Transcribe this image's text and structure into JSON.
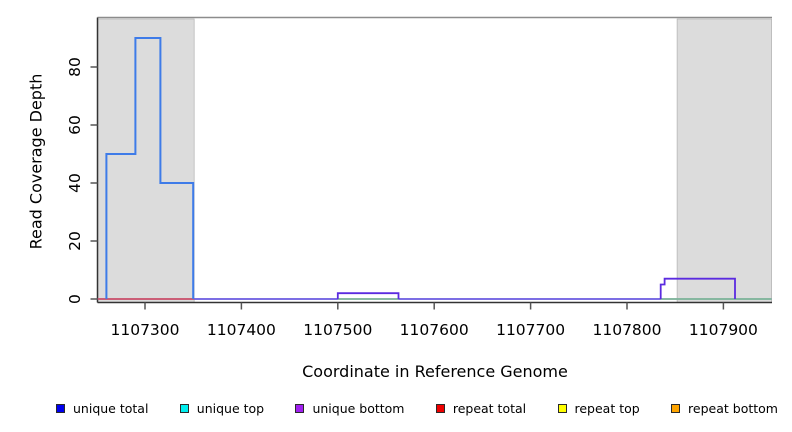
{
  "chart_data": {
    "type": "area",
    "title": "",
    "xlabel": "Coordinate in Reference Genome",
    "ylabel": "Read Coverage Depth",
    "xlim": [
      1107251,
      1107950
    ],
    "ylim": [
      0,
      93
    ],
    "x_ticks": [
      1107300,
      1107400,
      1107500,
      1107600,
      1107700,
      1107800,
      1107900
    ],
    "y_ticks": [
      0,
      20,
      40,
      60,
      80
    ],
    "grid": false,
    "legend_position": "bottom",
    "repeat_regions": [
      {
        "start": 1107251,
        "end": 1107351
      },
      {
        "start": 1107852,
        "end": 1107950
      }
    ],
    "series": [
      {
        "name": "unique-bottom-baseline-depth-0",
        "color": "#6A5AE0",
        "width": 1.8,
        "steps": [
          [
            1107251,
            0
          ],
          [
            1107950,
            0
          ]
        ]
      },
      {
        "name": "repeat-total-depth-0-left-region",
        "color": "#E25555",
        "width": 1.6,
        "steps": [
          [
            1107251,
            0
          ],
          [
            1107351,
            0
          ]
        ]
      },
      {
        "name": "unique-top-depth-0-under-mid-bump",
        "color": "#85CB8B",
        "width": 1.6,
        "steps": [
          [
            1107500,
            0
          ],
          [
            1107563,
            0
          ]
        ]
      },
      {
        "name": "unique-top-depth-0-right-region",
        "color": "#85CB8B",
        "width": 1.6,
        "steps": [
          [
            1107835,
            0
          ],
          [
            1107950,
            0
          ]
        ]
      },
      {
        "name": "unique-total-and-top-peak",
        "color": "#3E7BE8",
        "width": 2,
        "steps": [
          [
            1107260,
            50
          ],
          [
            1107290,
            90
          ],
          [
            1107316,
            40
          ],
          [
            1107350,
            0
          ]
        ]
      },
      {
        "name": "unique-bottom-mid-bump",
        "color": "#5B2BE0",
        "width": 1.8,
        "steps": [
          [
            1107500,
            2
          ],
          [
            1107563,
            0
          ]
        ]
      },
      {
        "name": "unique-total-and-bottom-right-bump",
        "color": "#5B2BE0",
        "width": 1.8,
        "steps": [
          [
            1107835,
            5
          ],
          [
            1107839,
            7
          ],
          [
            1107912,
            0
          ]
        ]
      }
    ]
  },
  "legend": {
    "items": [
      {
        "label": "unique total",
        "color": "#0000EE"
      },
      {
        "label": "unique top",
        "color": "#00EEEE"
      },
      {
        "label": "unique bottom",
        "color": "#A020F0"
      },
      {
        "label": "repeat total",
        "color": "#EE0000"
      },
      {
        "label": "repeat top",
        "color": "#FFFF00"
      },
      {
        "label": "repeat bottom",
        "color": "#FFA500"
      }
    ]
  },
  "colors": {
    "repeat_region_fill": "#DCDCDC",
    "repeat_region_border": "#B4B4B4",
    "plot_top_border": "#8C8C8C",
    "axis": "#333333",
    "tick": "#555555"
  }
}
